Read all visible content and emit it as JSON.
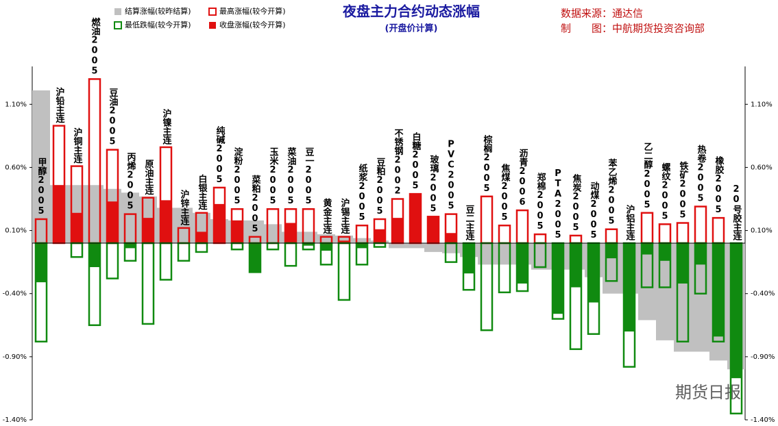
{
  "chart_data": {
    "type": "bar",
    "title": "夜盘主力合约动态涨幅",
    "subtitle": "(开盘价计算)",
    "source": "数据来源：通达信",
    "maker": "制　　图：中航期货投资咨询部",
    "watermark": "期货日报",
    "categories": [
      "甲醇2005",
      "沪铅主连",
      "沪铜主连",
      "燃油2005",
      "豆油2005",
      "丙烯2005",
      "原油主连",
      "沪镍主连",
      "沪锌主连",
      "白银主连",
      "纯碱2005",
      "淀粉2005",
      "菜粕2005",
      "玉米2005",
      "菜油2005",
      "豆一2005",
      "黄金主连",
      "沪锡主连",
      "纸浆2005",
      "豆粕2005",
      "不锈钢2002",
      "白糖2005",
      "玻璃2005",
      "PVC2005",
      "豆二主连",
      "棕榈2005",
      "焦煤2005",
      "沥青2006",
      "郑棉2005",
      "PTA2005",
      "焦炭2005",
      "动煤2005",
      "苯乙烯2005",
      "沪铝主连",
      "乙二醇2005",
      "螺纹2005",
      "铁矿2005",
      "热卷2005",
      "橡胶2005",
      "20号胶主连"
    ],
    "series": [
      {
        "name": "结算涨幅(较昨结算)",
        "color": "#c0c0c0",
        "style": "fill",
        "values": [
          1.21,
          0.46,
          0.46,
          0.46,
          0.43,
          0.4,
          0.37,
          0.28,
          0.28,
          0.24,
          0.19,
          0.18,
          0.18,
          0.15,
          0.09,
          0.09,
          0.07,
          0.06,
          0.04,
          0.02,
          -0.04,
          -0.04,
          -0.07,
          -0.08,
          -0.11,
          -0.17,
          -0.17,
          -0.17,
          -0.21,
          -0.21,
          -0.21,
          -0.27,
          -0.4,
          -0.4,
          -0.61,
          -0.77,
          -0.86,
          -0.86,
          -0.93,
          -1.0
        ]
      },
      {
        "name": "最高涨幅(较今开算)",
        "color": "#e01010",
        "style": "outline",
        "values": [
          0.19,
          0.93,
          0.61,
          1.3,
          0.74,
          0.23,
          0.36,
          0.76,
          0.12,
          0.24,
          0.44,
          0.27,
          0.05,
          0.27,
          0.27,
          0.27,
          0.05,
          0.05,
          0.14,
          0.19,
          0.35,
          0.39,
          0.21,
          0.23,
          0,
          0.37,
          0.14,
          0.26,
          0.07,
          0,
          0.06,
          0,
          0.11,
          0,
          0.24,
          0.15,
          0.16,
          0.29,
          0.2,
          0
        ]
      },
      {
        "name": "最低跌幅(较今开算)",
        "color": "#108a10",
        "style": "outline",
        "values": [
          -0.78,
          0,
          -0.11,
          -0.65,
          -0.28,
          -0.14,
          -0.64,
          -0.29,
          -0.14,
          -0.07,
          0,
          -0.05,
          -0.23,
          -0.05,
          -0.18,
          -0.05,
          -0.17,
          -0.45,
          -0.17,
          -0.03,
          0,
          0,
          0,
          -0.15,
          -0.37,
          -0.69,
          -0.39,
          -0.38,
          -0.19,
          -0.6,
          -0.84,
          -0.72,
          -0.3,
          -0.98,
          -0.35,
          -0.35,
          -0.78,
          -0.4,
          -0.78,
          -1.35
        ]
      },
      {
        "name": "收盘涨幅(较今开算)",
        "color": "#e01010",
        "color_down": "#108a10",
        "style": "fill",
        "values": [
          -0.31,
          0.46,
          0.24,
          -0.19,
          0.33,
          -0.04,
          0.2,
          0.34,
          0,
          0.09,
          0.31,
          0.18,
          -0.23,
          0,
          0.16,
          -0.02,
          -0.06,
          0.02,
          -0.04,
          0.11,
          0.2,
          0.39,
          0.21,
          0.08,
          -0.24,
          0,
          0,
          -0.32,
          0,
          -0.56,
          -0.35,
          -0.47,
          -0.12,
          -0.7,
          -0.09,
          -0.14,
          -0.32,
          -0.17,
          -0.74,
          -1.07
        ]
      }
    ],
    "ylim": [
      -1.4,
      1.4
    ],
    "yticks": [
      {
        "value": -1.4,
        "label": "-1.40%"
      },
      {
        "value": -0.9,
        "label": "-0.90%"
      },
      {
        "value": -0.4,
        "label": "-0.40%"
      },
      {
        "value": 0.1,
        "label": "0.10%"
      },
      {
        "value": 0.6,
        "label": "0.60%"
      },
      {
        "value": 1.1,
        "label": "1.10%"
      }
    ]
  }
}
